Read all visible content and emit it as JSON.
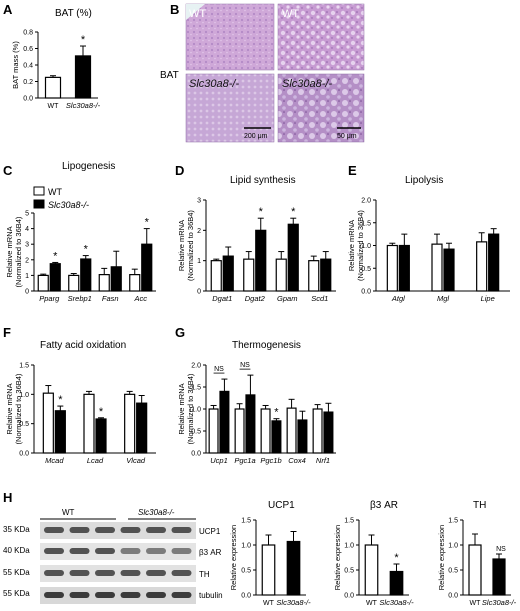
{
  "panels": {
    "A": "A",
    "B": "B",
    "C": "C",
    "D": "D",
    "E": "E",
    "F": "F",
    "G": "G",
    "H": "H"
  },
  "common": {
    "wt": "WT",
    "ko": "Slc30a8-/-",
    "ylabel_mrna_1": "Relative mRNA",
    "ylabel_mrna_2": "(Normalized to 36B4)",
    "bar_color_wt": "#ffffff",
    "bar_color_ko": "#000000"
  },
  "histology": {
    "tissue": "BAT",
    "wt_low": "WT",
    "wt_high": "WT",
    "ko_low": "Slc30a8-/-",
    "ko_high": "Slc30a8-/-",
    "scale_low": "200 μm",
    "scale_high": "50 μm",
    "stain_color": "#c9a2d4"
  },
  "western": {
    "group_wt": "WT",
    "group_ko": "Slc30a8-/-",
    "markers": [
      "35 KDa",
      "40 KDa",
      "55 KDa",
      "55 KDa"
    ],
    "proteins": [
      "UCP1",
      "β3 AR",
      "TH",
      "tubulin"
    ]
  },
  "chart_data": [
    {
      "id": "A",
      "type": "bar",
      "title": "BAT (%)",
      "ylabel": "BAT mass (%)",
      "ylim": [
        0,
        0.8
      ],
      "yticks": [
        "0.0",
        "0.2",
        "0.4",
        "0.6",
        "0.8"
      ],
      "categories": [
        "WT",
        "Slc30a8-/-"
      ],
      "values": [
        0.25,
        0.51
      ],
      "errors": [
        0.02,
        0.12
      ],
      "significance": [
        "",
        "*"
      ]
    },
    {
      "id": "C",
      "type": "bar",
      "title": "Lipogenesis",
      "ylim": [
        0,
        5
      ],
      "yticks": [
        "0",
        "1",
        "2",
        "3",
        "4",
        "5"
      ],
      "categories": [
        "Pparg",
        "Srebp1",
        "Fasn",
        "Acc"
      ],
      "legend": [
        "WT",
        "Slc30a8-/-"
      ],
      "series": [
        {
          "name": "WT",
          "values": [
            1.0,
            1.0,
            1.05,
            1.05
          ],
          "errors": [
            0.08,
            0.12,
            0.4,
            0.35
          ]
        },
        {
          "name": "Slc30a8-/-",
          "values": [
            1.75,
            2.05,
            1.55,
            3.0
          ],
          "errors": [
            0.08,
            0.22,
            1.0,
            1.0
          ]
        }
      ],
      "significance": [
        "*",
        "*",
        "",
        "*"
      ]
    },
    {
      "id": "D",
      "type": "bar",
      "title": "Lipid synthesis",
      "ylim": [
        0,
        3
      ],
      "yticks": [
        "0",
        "1",
        "2",
        "3"
      ],
      "categories": [
        "Dgat1",
        "Dgat2",
        "Gpam",
        "Scd1"
      ],
      "series": [
        {
          "name": "WT",
          "values": [
            1.0,
            1.05,
            1.05,
            1.0
          ],
          "errors": [
            0.05,
            0.25,
            0.25,
            0.15
          ]
        },
        {
          "name": "Slc30a8-/-",
          "values": [
            1.15,
            2.0,
            2.2,
            1.05
          ],
          "errors": [
            0.3,
            0.4,
            0.2,
            0.25
          ]
        }
      ],
      "significance": [
        "",
        "*",
        "*",
        ""
      ]
    },
    {
      "id": "E",
      "type": "bar",
      "title": "Lipolysis",
      "ylim": [
        0,
        2.0
      ],
      "yticks": [
        "0.0",
        "0.5",
        "1.0",
        "1.5",
        "2.0"
      ],
      "categories": [
        "Atgl",
        "Mgl",
        "Lipe"
      ],
      "series": [
        {
          "name": "WT",
          "values": [
            1.0,
            1.03,
            1.08
          ],
          "errors": [
            0.05,
            0.22,
            0.2
          ]
        },
        {
          "name": "Slc30a8-/-",
          "values": [
            1.0,
            0.92,
            1.25
          ],
          "errors": [
            0.25,
            0.13,
            0.12
          ]
        }
      ],
      "significance": [
        "",
        "",
        ""
      ]
    },
    {
      "id": "F",
      "type": "bar",
      "title": "Fatty acid oxidation",
      "ylim": [
        0,
        1.5
      ],
      "yticks": [
        "0.0",
        "0.5",
        "1.0",
        "1.5"
      ],
      "categories": [
        "Mcad",
        "Lcad",
        "Vlcad"
      ],
      "series": [
        {
          "name": "WT",
          "values": [
            1.02,
            1.0,
            1.0
          ],
          "errors": [
            0.13,
            0.05,
            0.05
          ]
        },
        {
          "name": "Slc30a8-/-",
          "values": [
            0.72,
            0.58,
            0.85
          ],
          "errors": [
            0.08,
            0.02,
            0.13
          ]
        }
      ],
      "significance": [
        "*",
        "*",
        ""
      ]
    },
    {
      "id": "G",
      "type": "bar",
      "title": "Thermogenesis",
      "ylim": [
        0,
        2.0
      ],
      "yticks": [
        "0.0",
        "0.5",
        "1.0",
        "1.5",
        "2.0"
      ],
      "categories": [
        "Ucp1",
        "Pgc1a",
        "Pgc1b",
        "Cox4",
        "Nrf1"
      ],
      "series": [
        {
          "name": "WT",
          "values": [
            1.0,
            1.0,
            1.0,
            1.02,
            1.0
          ],
          "errors": [
            0.08,
            0.12,
            0.08,
            0.2,
            0.1
          ]
        },
        {
          "name": "Slc30a8-/-",
          "values": [
            1.4,
            1.32,
            0.73,
            0.75,
            0.93
          ],
          "errors": [
            0.28,
            0.45,
            0.05,
            0.2,
            0.2
          ]
        }
      ],
      "significance": [
        "NS",
        "NS",
        "*",
        "",
        ""
      ]
    },
    {
      "id": "H1",
      "type": "bar",
      "title": "UCP1",
      "ylabel": "Relative expression",
      "ylim": [
        0,
        1.5
      ],
      "yticks": [
        "0.0",
        "0.5",
        "1.0",
        "1.5"
      ],
      "categories": [
        "WT",
        "Slc30a8-/-"
      ],
      "values": [
        1.0,
        1.07
      ],
      "errors": [
        0.2,
        0.2
      ],
      "significance": [
        "",
        ""
      ]
    },
    {
      "id": "H2",
      "type": "bar",
      "title": "β3 AR",
      "ylabel": "Relative expression",
      "ylim": [
        0,
        1.5
      ],
      "yticks": [
        "0.0",
        "0.5",
        "1.0",
        "1.5"
      ],
      "categories": [
        "WT",
        "Slc30a8-/-"
      ],
      "values": [
        1.0,
        0.47
      ],
      "errors": [
        0.2,
        0.15
      ],
      "significance": [
        "",
        "*"
      ]
    },
    {
      "id": "H3",
      "type": "bar",
      "title": "TH",
      "ylabel": "Relative expression",
      "ylim": [
        0,
        1.5
      ],
      "yticks": [
        "0.0",
        "0.5",
        "1.0",
        "1.5"
      ],
      "categories": [
        "WT",
        "Slc30a8-/-"
      ],
      "values": [
        1.0,
        0.72
      ],
      "errors": [
        0.22,
        0.1
      ],
      "significance": [
        "",
        "NS"
      ]
    }
  ]
}
